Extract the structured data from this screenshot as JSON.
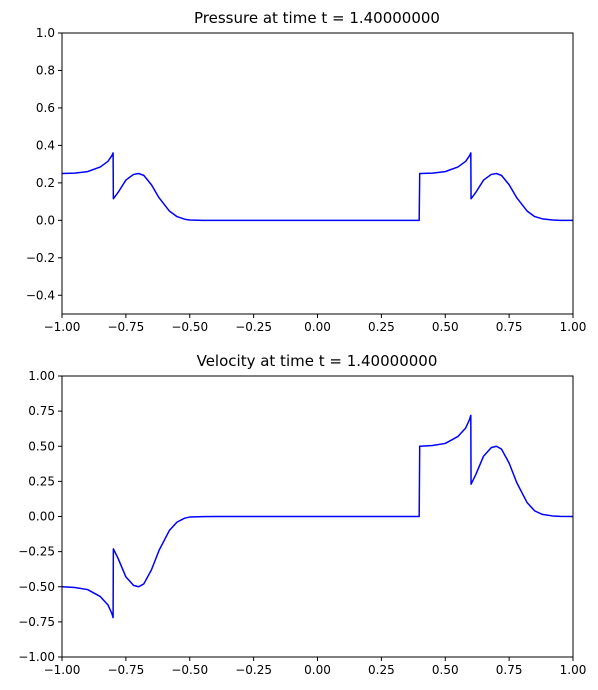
{
  "chart_data": [
    {
      "type": "line",
      "title": "Pressure at time t =     1.40000000",
      "xlim": [
        -1.0,
        1.0
      ],
      "ylim": [
        -0.5,
        1.0
      ],
      "x_ticks": [
        "−1.00",
        "−0.75",
        "−0.50",
        "−0.25",
        "0.00",
        "0.25",
        "0.50",
        "0.75",
        "1.00"
      ],
      "y_ticks": [
        "1.0",
        "0.8",
        "0.6",
        "0.4",
        "0.2",
        "0.0",
        "−0.2",
        "−0.4"
      ],
      "grid": false,
      "series": [
        {
          "color": "#0000ff",
          "x": [
            -1.0,
            -0.95,
            -0.9,
            -0.85,
            -0.82,
            -0.805,
            -0.8,
            -0.799,
            -0.78,
            -0.75,
            -0.72,
            -0.7,
            -0.68,
            -0.65,
            -0.62,
            -0.58,
            -0.55,
            -0.52,
            -0.5,
            -0.45,
            -0.4,
            0.0,
            0.3,
            0.398,
            0.4,
            0.402,
            0.45,
            0.5,
            0.55,
            0.58,
            0.595,
            0.6,
            0.601,
            0.62,
            0.65,
            0.68,
            0.7,
            0.72,
            0.75,
            0.78,
            0.82,
            0.85,
            0.88,
            0.92,
            0.95,
            1.0
          ],
          "y": [
            0.25,
            0.252,
            0.26,
            0.285,
            0.315,
            0.345,
            0.36,
            0.115,
            0.15,
            0.215,
            0.245,
            0.25,
            0.24,
            0.19,
            0.12,
            0.05,
            0.02,
            0.006,
            0.002,
            0.0,
            0.0,
            0.0,
            0.0,
            0.0,
            0.25,
            0.25,
            0.252,
            0.26,
            0.285,
            0.315,
            0.345,
            0.36,
            0.115,
            0.15,
            0.215,
            0.245,
            0.25,
            0.24,
            0.19,
            0.12,
            0.05,
            0.02,
            0.008,
            0.002,
            0.0,
            0.0
          ]
        }
      ]
    },
    {
      "type": "line",
      "title": "Velocity at time t =     1.40000000",
      "xlim": [
        -1.0,
        1.0
      ],
      "ylim": [
        -1.0,
        1.0
      ],
      "x_ticks": [
        "−1.00",
        "−0.75",
        "−0.50",
        "−0.25",
        "0.00",
        "0.25",
        "0.50",
        "0.75",
        "1.00"
      ],
      "y_ticks": [
        "1.00",
        "0.75",
        "0.50",
        "0.25",
        "0.00",
        "−0.25",
        "−0.50",
        "−0.75",
        "−1.00"
      ],
      "grid": false,
      "series": [
        {
          "color": "#0000ff",
          "x": [
            -1.0,
            -0.95,
            -0.9,
            -0.85,
            -0.82,
            -0.805,
            -0.8,
            -0.799,
            -0.78,
            -0.75,
            -0.72,
            -0.7,
            -0.68,
            -0.65,
            -0.62,
            -0.58,
            -0.55,
            -0.52,
            -0.5,
            -0.45,
            -0.4,
            0.0,
            0.3,
            0.398,
            0.4,
            0.402,
            0.45,
            0.5,
            0.55,
            0.58,
            0.595,
            0.6,
            0.601,
            0.62,
            0.65,
            0.68,
            0.7,
            0.72,
            0.75,
            0.78,
            0.82,
            0.85,
            0.88,
            0.92,
            0.95,
            1.0
          ],
          "y": [
            -0.5,
            -0.505,
            -0.52,
            -0.57,
            -0.63,
            -0.69,
            -0.72,
            -0.23,
            -0.3,
            -0.43,
            -0.49,
            -0.5,
            -0.48,
            -0.38,
            -0.24,
            -0.1,
            -0.04,
            -0.012,
            -0.004,
            -0.001,
            0.0,
            0.0,
            0.0,
            0.0,
            0.5,
            0.5,
            0.505,
            0.52,
            0.57,
            0.63,
            0.69,
            0.72,
            0.23,
            0.3,
            0.43,
            0.49,
            0.5,
            0.48,
            0.38,
            0.24,
            0.1,
            0.04,
            0.015,
            0.004,
            0.001,
            0.0
          ]
        }
      ]
    }
  ]
}
